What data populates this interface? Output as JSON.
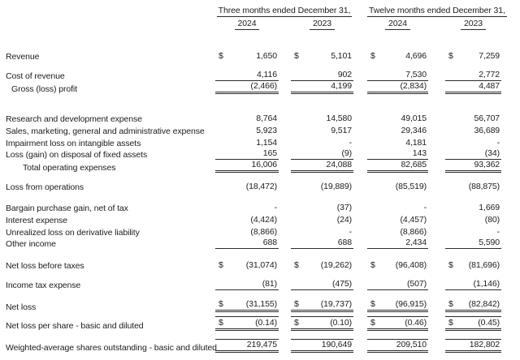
{
  "table": {
    "currency_symbol": "$",
    "groups": [
      {
        "label": "Three months ended December 31,",
        "years": [
          "2024",
          "2023"
        ]
      },
      {
        "label": "Twelve months ended December 31,",
        "years": [
          "2024",
          "2023"
        ]
      }
    ],
    "rows": [
      {
        "label": "Revenue",
        "indent": 0,
        "dollar": true,
        "values": [
          "1,650",
          "5,101",
          "4,696",
          "7,259"
        ],
        "overline": false,
        "underline": "none"
      },
      {
        "label": "Cost of revenue",
        "indent": 0,
        "dollar": false,
        "values": [
          "4,116",
          "902",
          "7,530",
          "2,772"
        ],
        "overline": false,
        "underline": "single"
      },
      {
        "label": "Gross (loss) profit",
        "indent": 1,
        "dollar": false,
        "values": [
          "(2,466)",
          "4,199",
          "(2,834)",
          "4,487"
        ],
        "overline": false,
        "underline": "double"
      },
      {
        "label": "Research and development expense",
        "indent": 0,
        "dollar": false,
        "values": [
          "8,764",
          "14,580",
          "49,015",
          "56,707"
        ],
        "overline": false,
        "underline": "none"
      },
      {
        "label": "Sales, marketing, general and administrative expense",
        "indent": 0,
        "dollar": false,
        "values": [
          "5,923",
          "9,517",
          "29,346",
          "36,689"
        ],
        "overline": false,
        "underline": "none"
      },
      {
        "label": "Impairment loss on intangible assets",
        "indent": 0,
        "dollar": false,
        "values": [
          "1,154",
          "-",
          "4,181",
          "-"
        ],
        "overline": false,
        "underline": "none"
      },
      {
        "label": "Loss (gain) on disposal of fixed assets",
        "indent": 0,
        "dollar": false,
        "values": [
          "165",
          "(9)",
          "143",
          "(34)"
        ],
        "overline": false,
        "underline": "single"
      },
      {
        "label": "Total operating expenses",
        "indent": 2,
        "dollar": false,
        "values": [
          "16,006",
          "24,088",
          "82,685",
          "93,362"
        ],
        "overline": false,
        "underline": "double"
      },
      {
        "label": "Loss from operations",
        "indent": 0,
        "dollar": false,
        "values": [
          "(18,472)",
          "(19,889)",
          "(85,519)",
          "(88,875)"
        ],
        "overline": false,
        "underline": "none"
      },
      {
        "label": "Bargain purchase gain, net of tax",
        "indent": 0,
        "dollar": false,
        "values": [
          "-",
          "(37)",
          "-",
          "1,669"
        ],
        "overline": false,
        "underline": "none"
      },
      {
        "label": "Interest expense",
        "indent": 0,
        "dollar": false,
        "values": [
          "(4,424)",
          "(24)",
          "(4,457)",
          "(80)"
        ],
        "overline": false,
        "underline": "none"
      },
      {
        "label": "Unrealized loss on derivative liability",
        "indent": 0,
        "dollar": false,
        "values": [
          "(8,866)",
          "-",
          "(8,866)",
          "-"
        ],
        "overline": false,
        "underline": "none"
      },
      {
        "label": "Other income",
        "indent": 0,
        "dollar": false,
        "values": [
          "688",
          "688",
          "2,434",
          "5,590"
        ],
        "overline": false,
        "underline": "single"
      },
      {
        "label": "Net loss before taxes",
        "indent": 0,
        "dollar": true,
        "values": [
          "(31,074)",
          "(19,262)",
          "(96,408)",
          "(81,696)"
        ],
        "overline": false,
        "underline": "none"
      },
      {
        "label": "Income tax expense",
        "indent": 0,
        "dollar": false,
        "values": [
          "(81)",
          "(475)",
          "(507)",
          "(1,146)"
        ],
        "overline": false,
        "underline": "single"
      },
      {
        "label": "Net loss",
        "indent": 0,
        "dollar": true,
        "values": [
          "(31,155)",
          "(19,737)",
          "(96,915)",
          "(82,842)"
        ],
        "overline": false,
        "underline": "double"
      },
      {
        "label": "Net loss per share - basic and diluted",
        "indent": 0,
        "dollar": true,
        "values": [
          "(0.14)",
          "(0.10)",
          "(0.46)",
          "(0.45)"
        ],
        "overline": true,
        "underline": "double"
      },
      {
        "label": "Weighted-average shares outstanding - basic and diluted",
        "indent": 0,
        "dollar": false,
        "values": [
          "219,475",
          "190,649",
          "209,510",
          "182,802"
        ],
        "overline": true,
        "underline": "double"
      }
    ]
  }
}
